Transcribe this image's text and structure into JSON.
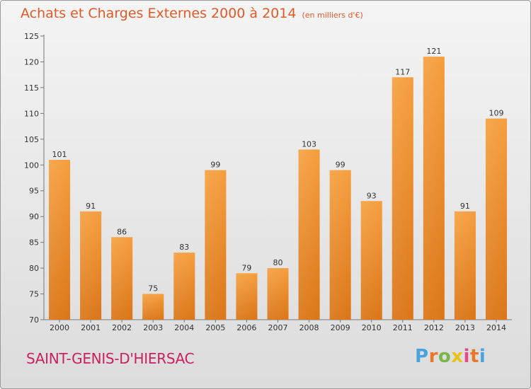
{
  "chart_data": {
    "type": "bar",
    "title": "Achats et Charges Externes 2000 à 2014",
    "subtitle": "(en milliers d'€)",
    "categories": [
      "2000",
      "2001",
      "2002",
      "2003",
      "2004",
      "2005",
      "2006",
      "2007",
      "2008",
      "2009",
      "2010",
      "2011",
      "2012",
      "2013",
      "2014"
    ],
    "values": [
      101,
      91,
      86,
      75,
      83,
      99,
      79,
      80,
      103,
      99,
      93,
      117,
      121,
      91,
      109
    ],
    "ylim": [
      70,
      125
    ],
    "yticks": [
      70,
      75,
      80,
      85,
      90,
      95,
      100,
      105,
      110,
      115,
      120,
      125
    ],
    "grid": false,
    "data_labels": true,
    "bar_color": "#f09a3c"
  },
  "footer": {
    "place": "SAINT-GENIS-D'HIERSAC",
    "logo_text": "Proxiti"
  },
  "logo_colors": [
    "#4aa3df",
    "#e8782a",
    "#7ab648",
    "#e8c21a",
    "#e24a8a",
    "#e8782a",
    "#4aa3df"
  ]
}
